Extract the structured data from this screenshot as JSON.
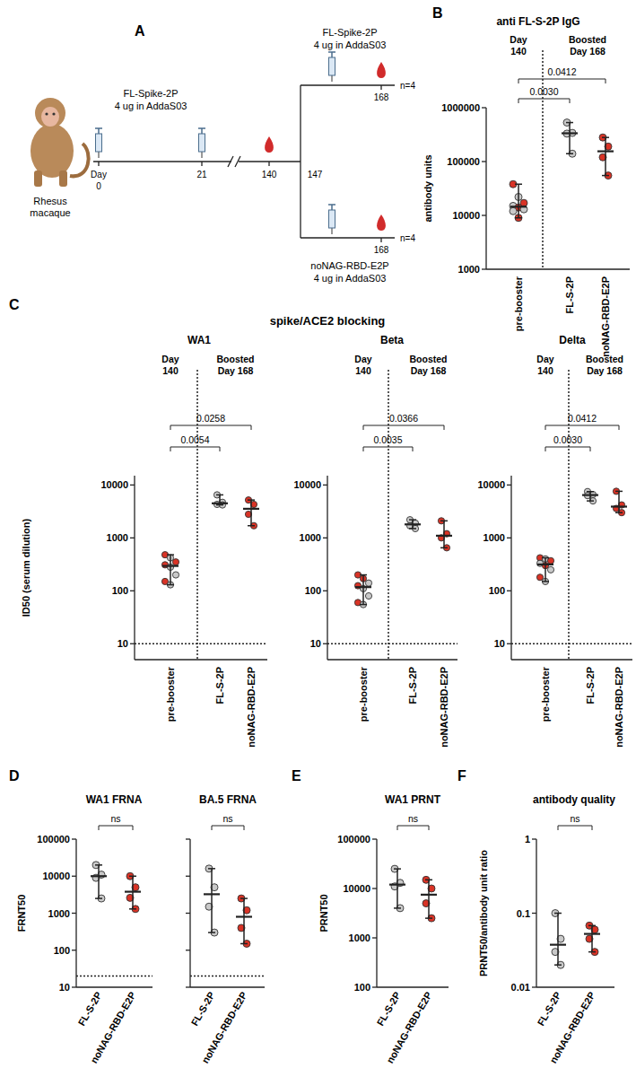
{
  "diagram": {
    "panel": "A",
    "subject": "Rhesus macaque",
    "day_label": "Day",
    "days": [
      "0",
      "21",
      "140",
      "147",
      "168"
    ],
    "prime": {
      "name": "FL-Spike-2P",
      "dose": "4 ug in AddaS03"
    },
    "boosts": [
      {
        "name": "FL-Spike-2P",
        "dose": "4 ug in AddaS03",
        "n": "n=4"
      },
      {
        "name": "noNAG-RBD-E2P",
        "dose": "4 ug in AddaS03",
        "n": "n=4"
      }
    ]
  },
  "chart_data": [
    {
      "type": "dot",
      "panel": "B",
      "title": "anti FL-S-2P IgG",
      "y_label": "antibody units",
      "group_labels": [
        {
          "lines": [
            "Day",
            "140"
          ],
          "span": [
            0,
            0
          ]
        },
        {
          "lines": [
            "Boosted",
            "Day 168"
          ],
          "span": [
            1,
            2
          ]
        }
      ],
      "categories": [
        "pre-booster",
        "FL-S-2P",
        "noNAG-RBD-E2P"
      ],
      "values": [
        [
          38000,
          22000,
          17000,
          15000,
          14000,
          13000,
          12000,
          9000
        ],
        [
          530000,
          340000,
          330000,
          140000
        ],
        [
          280000,
          190000,
          120000,
          55000
        ]
      ],
      "colors": [
        [
          "#d93326",
          "#c9c9c9",
          "#d93326",
          "#c9c9c9",
          "#d93326",
          "#c9c9c9",
          "#c9c9c9",
          "#d93326"
        ],
        [
          "#c9c9c9",
          "#c9c9c9",
          "#c9c9c9",
          "#c9c9c9"
        ],
        [
          "#d93326",
          "#d93326",
          "#d93326",
          "#d93326"
        ]
      ],
      "log": "y",
      "ylim": [
        1000,
        1000000
      ],
      "yticks": [
        1000,
        10000,
        100000,
        1000000
      ],
      "comparisons": [
        {
          "from": 0,
          "to": 1,
          "label": "0.0030"
        },
        {
          "from": 0,
          "to": 2,
          "label": "0.0412"
        }
      ]
    },
    {
      "type": "dot",
      "panel": "C",
      "suptitle": "spike/ACE2 blocking",
      "title": "WA1",
      "y_label": "ID50 (serum dilution)",
      "group_labels": [
        {
          "lines": [
            "Day",
            "140"
          ],
          "span": [
            0,
            0
          ]
        },
        {
          "lines": [
            "Boosted",
            "Day 168"
          ],
          "span": [
            1,
            2
          ]
        }
      ],
      "categories": [
        "pre-booster",
        "FL-S-2P",
        "noNAG-RBD-E2P"
      ],
      "values": [
        [
          480,
          420,
          350,
          310,
          280,
          200,
          150,
          130
        ],
        [
          6500,
          4700,
          4300,
          4200
        ],
        [
          5200,
          4300,
          2800,
          1700
        ]
      ],
      "colors": [
        [
          "#d93326",
          "#c9c9c9",
          "#d93326",
          "#d93326",
          "#c9c9c9",
          "#c9c9c9",
          "#d93326",
          "#c9c9c9"
        ],
        [
          "#c9c9c9",
          "#c9c9c9",
          "#c9c9c9",
          "#c9c9c9"
        ],
        [
          "#d93326",
          "#d93326",
          "#d93326",
          "#d93326"
        ]
      ],
      "log": "y",
      "ylim": [
        5,
        15000
      ],
      "yticks": [
        10,
        100,
        1000,
        10000
      ],
      "limit_of_detection": 10,
      "comparisons": [
        {
          "from": 0,
          "to": 1,
          "label": "0.0054"
        },
        {
          "from": 0,
          "to": 2,
          "label": "0.0258"
        }
      ]
    },
    {
      "type": "dot",
      "title": "Beta",
      "group_labels": [
        {
          "lines": [
            "Day",
            "140"
          ],
          "span": [
            0,
            0
          ]
        },
        {
          "lines": [
            "Boosted",
            "Day 168"
          ],
          "span": [
            1,
            2
          ]
        }
      ],
      "categories": [
        "pre-booster",
        "FL-S-2P",
        "noNAG-RBD-E2P"
      ],
      "values": [
        [
          200,
          170,
          140,
          125,
          110,
          80,
          60,
          55
        ],
        [
          2200,
          1900,
          1700,
          1500
        ],
        [
          2100,
          1200,
          1000,
          650
        ]
      ],
      "colors": [
        [
          "#d93326",
          "#d93326",
          "#c9c9c9",
          "#d93326",
          "#c9c9c9",
          "#c9c9c9",
          "#d93326",
          "#c9c9c9"
        ],
        [
          "#c9c9c9",
          "#c9c9c9",
          "#c9c9c9",
          "#c9c9c9"
        ],
        [
          "#d93326",
          "#d93326",
          "#d93326",
          "#d93326"
        ]
      ],
      "log": "y",
      "ylim": [
        5,
        15000
      ],
      "yticks": [
        10,
        100,
        1000,
        10000
      ],
      "limit_of_detection": 10,
      "comparisons": [
        {
          "from": 0,
          "to": 1,
          "label": "0.0035"
        },
        {
          "from": 0,
          "to": 2,
          "label": "0.0366"
        }
      ]
    },
    {
      "type": "dot",
      "title": "Delta",
      "group_labels": [
        {
          "lines": [
            "Day",
            "140"
          ],
          "span": [
            0,
            0
          ]
        },
        {
          "lines": [
            "Boosted",
            "Day 168"
          ],
          "span": [
            1,
            2
          ]
        }
      ],
      "categories": [
        "pre-booster",
        "FL-S-2P",
        "noNAG-RBD-E2P"
      ],
      "values": [
        [
          420,
          400,
          370,
          330,
          300,
          250,
          180,
          150
        ],
        [
          7500,
          6600,
          6300,
          5000
        ],
        [
          7600,
          4200,
          3600,
          3000
        ]
      ],
      "colors": [
        [
          "#d93326",
          "#c9c9c9",
          "#d93326",
          "#c9c9c9",
          "#d93326",
          "#c9c9c9",
          "#d93326",
          "#c9c9c9"
        ],
        [
          "#c9c9c9",
          "#c9c9c9",
          "#c9c9c9",
          "#c9c9c9"
        ],
        [
          "#d93326",
          "#d93326",
          "#d93326",
          "#d93326"
        ]
      ],
      "log": "y",
      "ylim": [
        5,
        15000
      ],
      "yticks": [
        10,
        100,
        1000,
        10000
      ],
      "limit_of_detection": 10,
      "comparisons": [
        {
          "from": 0,
          "to": 1,
          "label": "0.0030"
        },
        {
          "from": 0,
          "to": 2,
          "label": "0.0412"
        }
      ]
    },
    {
      "type": "dot",
      "panel": "D",
      "title": "WA1 FRNA",
      "y_label": "FRNT50",
      "categories": [
        "FL-S-2P",
        "noNAG-RBD-E2P"
      ],
      "values": [
        [
          20000,
          11000,
          9000,
          2500
        ],
        [
          10000,
          5000,
          2600,
          1300
        ]
      ],
      "colors": [
        [
          "#c9c9c9",
          "#c9c9c9",
          "#c9c9c9",
          "#c9c9c9"
        ],
        [
          "#d93326",
          "#d93326",
          "#d93326",
          "#d93326"
        ]
      ],
      "log": "y",
      "ylim": [
        10,
        100000
      ],
      "yticks": [
        10,
        100,
        1000,
        10000,
        100000
      ],
      "limit_of_detection": 20,
      "comparisons": [
        {
          "from": 0,
          "to": 1,
          "label": "ns"
        }
      ]
    },
    {
      "type": "dot",
      "title": "BA.5 FRNA",
      "categories": [
        "FL-S-2P",
        "noNAG-RBD-E2P"
      ],
      "values": [
        [
          16000,
          5000,
          1500,
          300
        ],
        [
          2500,
          1200,
          400,
          150
        ]
      ],
      "colors": [
        [
          "#c9c9c9",
          "#c9c9c9",
          "#c9c9c9",
          "#c9c9c9"
        ],
        [
          "#d93326",
          "#d93326",
          "#d93326",
          "#d93326"
        ]
      ],
      "log": "y",
      "ylim": [
        10,
        100000
      ],
      "yticks": [
        10,
        100,
        1000,
        10000,
        100000
      ],
      "tick_labels": "x",
      "limit_of_detection": 20,
      "comparisons": [
        {
          "from": 0,
          "to": 1,
          "label": "ns"
        }
      ]
    },
    {
      "type": "dot",
      "panel": "E",
      "title": "WA1 PRNT",
      "y_label": "PRNT50",
      "categories": [
        "FL-S-2P",
        "noNAG-RBD-E2P"
      ],
      "values": [
        [
          25000,
          13000,
          11000,
          4000
        ],
        [
          15000,
          10000,
          5000,
          2500
        ]
      ],
      "colors": [
        [
          "#c9c9c9",
          "#c9c9c9",
          "#c9c9c9",
          "#c9c9c9"
        ],
        [
          "#d93326",
          "#d93326",
          "#d93326",
          "#d93326"
        ]
      ],
      "log": "y",
      "ylim": [
        100,
        100000
      ],
      "yticks": [
        100,
        1000,
        10000,
        100000
      ],
      "comparisons": [
        {
          "from": 0,
          "to": 1,
          "label": "ns"
        }
      ]
    },
    {
      "type": "dot",
      "panel": "F",
      "title": "antibody quality",
      "y_label": "PRNT50/antibody unit ratio",
      "categories": [
        "FL-S-2P",
        "noNAG-RBD-E2P"
      ],
      "values": [
        [
          0.1,
          0.045,
          0.03,
          0.02
        ],
        [
          0.068,
          0.06,
          0.045,
          0.03
        ]
      ],
      "colors": [
        [
          "#c9c9c9",
          "#c9c9c9",
          "#c9c9c9",
          "#c9c9c9"
        ],
        [
          "#d93326",
          "#d93326",
          "#d93326",
          "#d93326"
        ]
      ],
      "log": "y",
      "ylim": [
        0.01,
        1
      ],
      "yticks": [
        0.01,
        0.1,
        1
      ],
      "comparisons": [
        {
          "from": 0,
          "to": 1,
          "label": "ns"
        }
      ]
    }
  ]
}
